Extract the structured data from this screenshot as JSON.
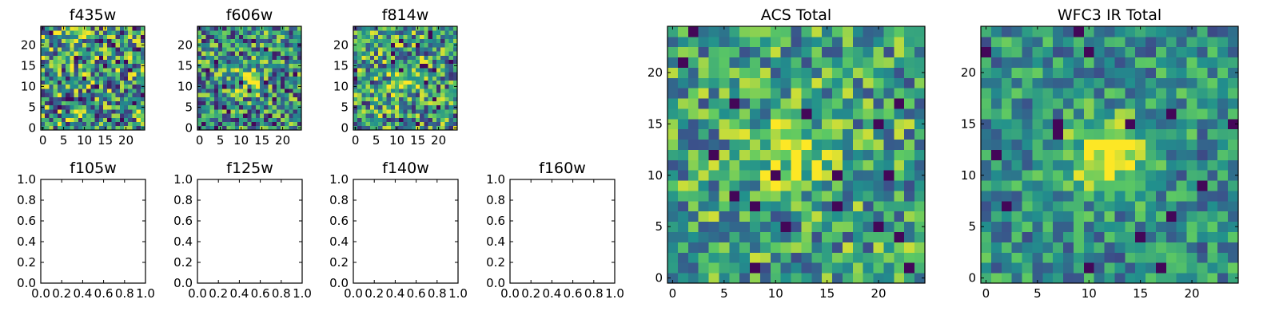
{
  "figure": {
    "background": "#ffffff"
  },
  "colormap": [
    "#440154",
    "#3b528b",
    "#21908d",
    "#5dc963",
    "#fde725"
  ],
  "chart_data": [
    {
      "type": "heatmap",
      "title": "f435w",
      "grid_size": 25,
      "xlim": [
        -0.5,
        24.5
      ],
      "ylim": [
        -0.5,
        24.5
      ],
      "xticks": [
        "0",
        "5",
        "10",
        "15",
        "20"
      ],
      "yticks": [
        "0",
        "5",
        "10",
        "15",
        "20"
      ],
      "pattern": {
        "seed": 11,
        "blob": 0.05,
        "noise": 0.95,
        "background": 0.55
      }
    },
    {
      "type": "heatmap",
      "title": "f606w",
      "grid_size": 25,
      "xlim": [
        -0.5,
        24.5
      ],
      "ylim": [
        -0.5,
        24.5
      ],
      "xticks": [
        "0",
        "5",
        "10",
        "15",
        "20"
      ],
      "yticks": [
        "0",
        "5",
        "10",
        "15",
        "20"
      ],
      "pattern": {
        "seed": 23,
        "blob": 0.3,
        "noise": 0.85,
        "background": 0.5
      }
    },
    {
      "type": "heatmap",
      "title": "f814w",
      "grid_size": 25,
      "xlim": [
        -0.5,
        24.5
      ],
      "ylim": [
        -0.5,
        24.5
      ],
      "xticks": [
        "0",
        "5",
        "10",
        "15",
        "20"
      ],
      "yticks": [
        "0",
        "5",
        "10",
        "15",
        "20"
      ],
      "pattern": {
        "seed": 37,
        "blob": 0.25,
        "noise": 0.85,
        "background": 0.55
      }
    },
    {
      "type": "empty",
      "title": "f105w",
      "xlim": [
        0,
        1
      ],
      "ylim": [
        0,
        1
      ],
      "xticks": [
        "0.0",
        "0.2",
        "0.4",
        "0.6",
        "0.8",
        "1.0"
      ],
      "yticks": [
        "0.0",
        "0.2",
        "0.4",
        "0.6",
        "0.8",
        "1.0"
      ]
    },
    {
      "type": "empty",
      "title": "f125w",
      "xlim": [
        0,
        1
      ],
      "ylim": [
        0,
        1
      ],
      "xticks": [
        "0.0",
        "0.2",
        "0.4",
        "0.6",
        "0.8",
        "1.0"
      ],
      "yticks": [
        "0.0",
        "0.2",
        "0.4",
        "0.6",
        "0.8",
        "1.0"
      ]
    },
    {
      "type": "empty",
      "title": "f140w",
      "xlim": [
        0,
        1
      ],
      "ylim": [
        0,
        1
      ],
      "xticks": [
        "0.0",
        "0.2",
        "0.4",
        "0.6",
        "0.8",
        "1.0"
      ],
      "yticks": [
        "0.0",
        "0.2",
        "0.4",
        "0.6",
        "0.8",
        "1.0"
      ]
    },
    {
      "type": "empty",
      "title": "f160w",
      "xlim": [
        0,
        1
      ],
      "ylim": [
        0,
        1
      ],
      "xticks": [
        "0.0",
        "0.2",
        "0.4",
        "0.6",
        "0.8",
        "1.0"
      ],
      "yticks": [
        "0.0",
        "0.2",
        "0.4",
        "0.6",
        "0.8",
        "1.0"
      ]
    },
    {
      "type": "heatmap",
      "title": "ACS Total",
      "grid_size": 25,
      "xlim": [
        -0.5,
        24.5
      ],
      "ylim": [
        -0.5,
        24.5
      ],
      "xticks": [
        "0",
        "5",
        "10",
        "15",
        "20"
      ],
      "yticks": [
        "0",
        "5",
        "10",
        "15",
        "20"
      ],
      "pattern": {
        "seed": 51,
        "blob": 0.35,
        "noise": 0.7,
        "background": 0.58
      }
    },
    {
      "type": "heatmap",
      "title": "WFC3 IR Total",
      "grid_size": 25,
      "xlim": [
        -0.5,
        24.5
      ],
      "ylim": [
        -0.5,
        24.5
      ],
      "xticks": [
        "0",
        "5",
        "10",
        "15",
        "20"
      ],
      "yticks": [
        "0",
        "5",
        "10",
        "15",
        "20"
      ],
      "pattern": {
        "seed": 73,
        "blob": 0.55,
        "noise": 0.55,
        "background": 0.5
      }
    }
  ]
}
